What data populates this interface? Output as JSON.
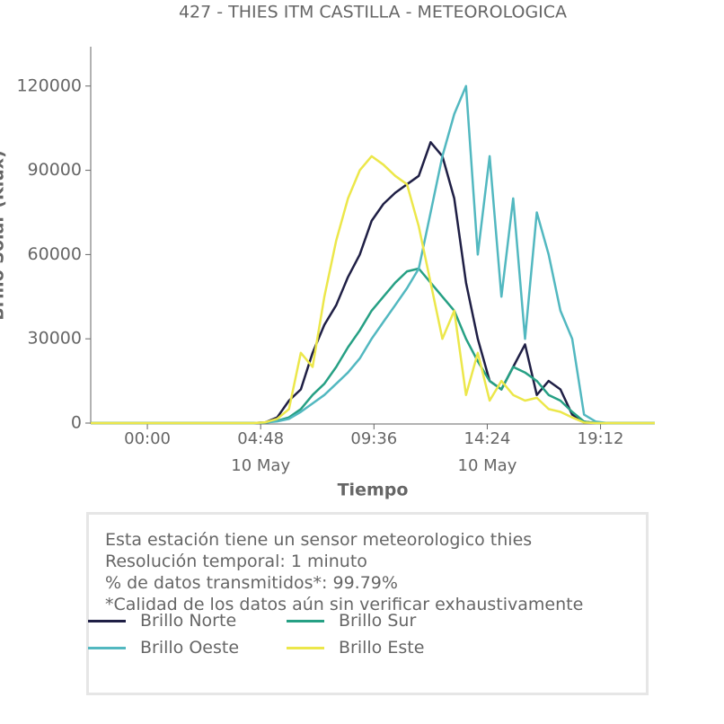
{
  "chart_data": {
    "type": "line",
    "title": "427 - THIES ITM CASTILLA - METEOROLOGICA",
    "xlabel": "Tiempo",
    "ylabel": "Brillo Solar (Klux)",
    "x": [
      -2.4,
      0,
      4,
      4.5,
      5,
      5.5,
      6,
      6.5,
      7,
      7.5,
      8,
      8.5,
      9,
      9.5,
      10,
      10.5,
      11,
      11.5,
      12,
      12.5,
      13,
      13.5,
      14,
      14.5,
      15,
      15.5,
      16,
      16.5,
      17,
      17.5,
      18,
      18.5,
      19,
      19.5,
      20,
      21.5
    ],
    "xlim": [
      -2.4,
      21.5
    ],
    "xticks": [
      {
        "value": 0,
        "label": "00:00"
      },
      {
        "value": 4.8,
        "label": "04:48\n10 May"
      },
      {
        "value": 9.6,
        "label": "09:36"
      },
      {
        "value": 14.4,
        "label": "14:24\n10 May"
      },
      {
        "value": 19.2,
        "label": "19:12"
      }
    ],
    "ylim": [
      0,
      134000
    ],
    "yticks": [
      0,
      30000,
      60000,
      90000,
      120000
    ],
    "series": [
      {
        "name": "Brillo Norte",
        "color": "#1f1f45",
        "values": [
          0,
          0,
          0,
          0,
          300,
          2000,
          8000,
          12000,
          25000,
          35000,
          42000,
          52000,
          60000,
          72000,
          78000,
          82000,
          85000,
          88000,
          100000,
          95000,
          80000,
          50000,
          30000,
          15000,
          12000,
          20000,
          28000,
          10000,
          15000,
          12000,
          3000,
          500,
          0,
          0,
          0,
          0
        ]
      },
      {
        "name": "Brillo Sur",
        "color": "#26a084",
        "values": [
          0,
          0,
          0,
          0,
          200,
          800,
          2000,
          5000,
          10000,
          14000,
          20000,
          27000,
          33000,
          40000,
          45000,
          50000,
          54000,
          55000,
          50000,
          45000,
          40000,
          30000,
          22000,
          15000,
          12000,
          20000,
          18000,
          15000,
          10000,
          8000,
          4000,
          500,
          0,
          0,
          0,
          0
        ]
      },
      {
        "name": "Brillo Oeste",
        "color": "#52b8c0",
        "values": [
          0,
          0,
          0,
          0,
          200,
          600,
          1500,
          4000,
          7000,
          10000,
          14000,
          18000,
          23000,
          30000,
          36000,
          42000,
          48000,
          55000,
          75000,
          95000,
          110000,
          120000,
          60000,
          95000,
          45000,
          80000,
          30000,
          75000,
          60000,
          40000,
          30000,
          3000,
          500,
          0,
          0,
          0
        ]
      },
      {
        "name": "Brillo Este",
        "color": "#ece74a",
        "values": [
          0,
          0,
          0,
          0,
          300,
          1500,
          5000,
          25000,
          20000,
          45000,
          65000,
          80000,
          90000,
          95000,
          92000,
          88000,
          85000,
          70000,
          50000,
          30000,
          40000,
          10000,
          25000,
          8000,
          15000,
          10000,
          8000,
          9000,
          5000,
          4000,
          2000,
          200,
          0,
          0,
          0,
          0
        ]
      }
    ],
    "notes": [
      "Esta estación tiene un sensor meteorologico thies",
      "Resolución temporal: 1 minuto",
      "% de datos transmitidos*: 99.79%",
      "*Calidad de los datos aún sin verificar exhaustivamente"
    ]
  }
}
